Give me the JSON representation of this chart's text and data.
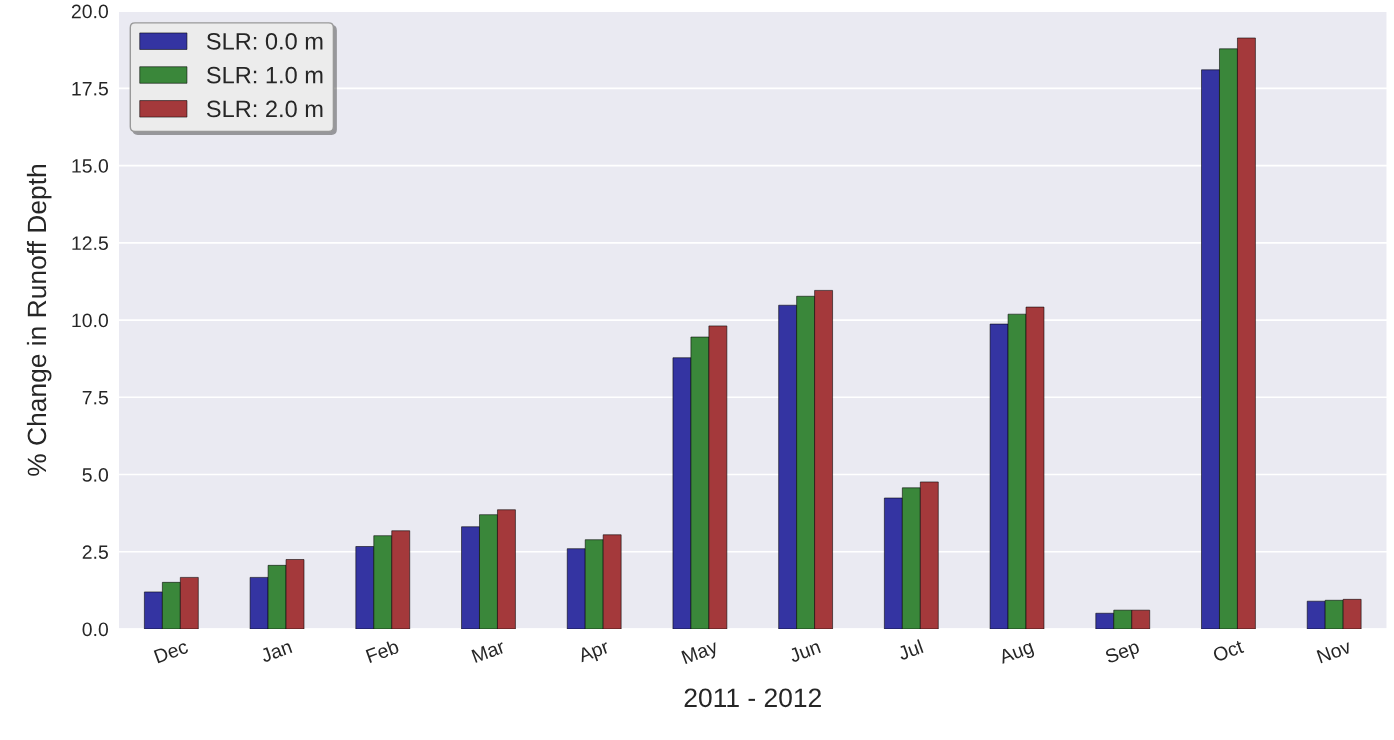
{
  "chart_data": {
    "type": "bar",
    "xlabel": "2011 - 2012",
    "ylabel": "% Change in Runoff Depth",
    "categories": [
      "Dec",
      "Jan",
      "Feb",
      "Mar",
      "Apr",
      "May",
      "Jun",
      "Jul",
      "Aug",
      "Sep",
      "Oct",
      "Nov"
    ],
    "series": [
      {
        "name": "SLR: 0.0 m",
        "color": "#3434a2",
        "values": [
          1.2,
          1.67,
          2.67,
          3.31,
          2.6,
          8.78,
          10.48,
          4.24,
          9.87,
          0.51,
          18.1,
          0.9
        ]
      },
      {
        "name": "SLR: 1.0 m",
        "color": "#3a873a",
        "values": [
          1.51,
          2.06,
          3.02,
          3.7,
          2.89,
          9.45,
          10.77,
          4.57,
          10.19,
          0.61,
          18.78,
          0.93
        ]
      },
      {
        "name": "SLR: 2.0 m",
        "color": "#a4393b",
        "values": [
          1.67,
          2.25,
          3.18,
          3.86,
          3.05,
          9.81,
          10.96,
          4.76,
          10.42,
          0.61,
          19.13,
          0.96
        ]
      }
    ],
    "ylim": [
      0,
      20
    ],
    "yticks": [
      {
        "value": 0,
        "label": "0.0"
      },
      2.5,
      {
        "value": 5,
        "label": "5.0"
      },
      7.5,
      {
        "value": 10,
        "label": "10.0"
      },
      12.5,
      {
        "value": 15,
        "label": "15.0"
      },
      17.5,
      {
        "value": 20,
        "label": "20.0"
      }
    ],
    "grid": "y",
    "legend": "top left"
  }
}
